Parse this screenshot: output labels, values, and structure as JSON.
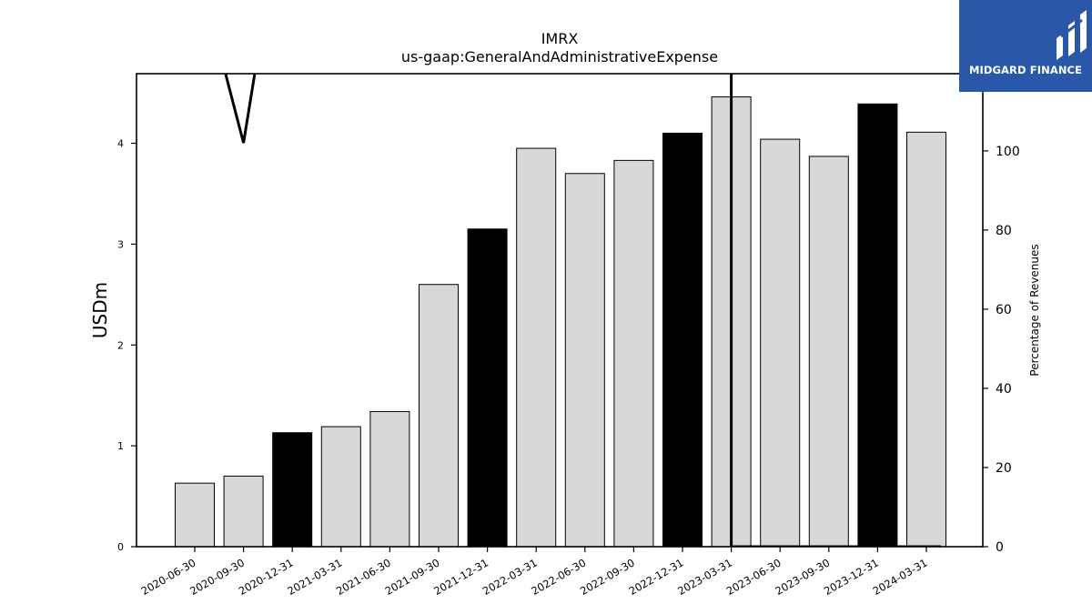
{
  "chart_data": {
    "type": "bar",
    "title": "IMRX",
    "subtitle": "us-gaap:GeneralAndAdministrativeExpense",
    "ylabel": "USDm",
    "y2label": "Percentage of Revenues",
    "categories": [
      "2020-06-30",
      "2020-09-30",
      "2020-12-31",
      "2021-03-31",
      "2021-06-30",
      "2021-09-30",
      "2021-12-31",
      "2022-03-31",
      "2022-06-30",
      "2022-09-30",
      "2022-12-31",
      "2023-03-31",
      "2023-06-30",
      "2023-09-30",
      "2023-12-31",
      "2024-03-31"
    ],
    "values": [
      0.63,
      0.7,
      1.13,
      1.19,
      1.34,
      2.6,
      3.15,
      3.95,
      3.7,
      3.83,
      4.1,
      4.46,
      4.04,
      3.87,
      4.39,
      4.11
    ],
    "highlight": [
      false,
      false,
      true,
      false,
      false,
      false,
      true,
      false,
      false,
      false,
      true,
      false,
      false,
      false,
      true,
      false
    ],
    "bar_color": "#d8d8d8",
    "highlight_color": "#000000",
    "ylim": [
      0,
      4.69
    ],
    "yticks": [
      0,
      1,
      2,
      3,
      4
    ],
    "y2lim": [
      0,
      119.5
    ],
    "y2ticks": [
      0,
      20,
      40,
      60,
      80,
      100
    ],
    "pct_line": {
      "segments": [
        [
          [
            0.6,
            121
          ],
          [
            1.0,
            102
          ],
          [
            1.25,
            121
          ]
        ],
        [
          [
            11,
            121
          ],
          [
            11,
            0
          ],
          [
            15.3,
            0
          ]
        ]
      ]
    },
    "grid": false
  },
  "brand": {
    "name": "MIDGARD FINANCE",
    "color": "#2a57a8"
  }
}
